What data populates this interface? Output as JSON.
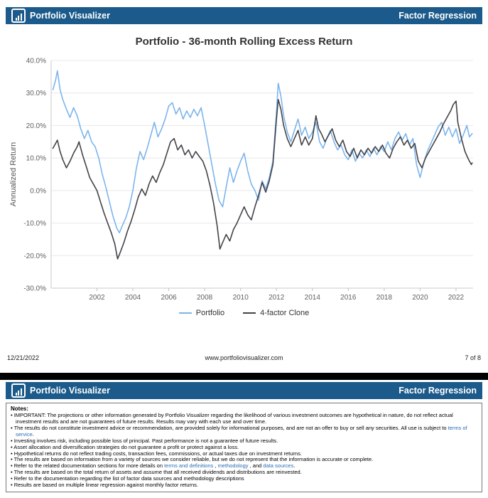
{
  "colors": {
    "header_bg": "#1b5a8a",
    "link": "#2a6db5",
    "portfolio_line": "#7cb5ec",
    "clone_line": "#434348"
  },
  "page1": {
    "header": {
      "brand": "Portfolio Visualizer",
      "section": "Factor Regression"
    },
    "chart_title": "Portfolio - 36-month Rolling Excess Return",
    "footer": {
      "date": "12/21/2022",
      "url": "www.portfoliovisualizer.com",
      "page": "7 of 8"
    }
  },
  "page2": {
    "header": {
      "brand": "Portfolio Visualizer",
      "section": "Factor Regression"
    },
    "notes_title": "Notes:",
    "bullet_char": "•",
    "notes": [
      [
        {
          "t": "IMPORTANT: The projections or other information generated by Portfolio Visualizer regarding the likelihood of various investment outcomes are hypothetical in nature, do not reflect actual investment results and are not guarantees of future results. Results may vary with each use and over time."
        }
      ],
      [
        {
          "t": "The results do not constitute investment advice or recommendation, are provided solely for informational purposes, and are not an offer to buy or sell any securities. All use is subject to "
        },
        {
          "t": "terms of service",
          "link": true
        },
        {
          "t": "."
        }
      ],
      [
        {
          "t": "Investing involves risk, including possible loss of principal. Past performance is not a guarantee of future results."
        }
      ],
      [
        {
          "t": "Asset allocation and diversification strategies do not guarantee a profit or protect against a loss."
        }
      ],
      [
        {
          "t": "Hypothetical returns do not reflect trading costs, transaction fees, commissions, or actual taxes due on investment returns."
        }
      ],
      [
        {
          "t": "The results are based on information from a variety of sources we consider reliable, but we do not represent that the information is accurate or complete."
        }
      ],
      [
        {
          "t": "Refer to the related documentation sections for more details on "
        },
        {
          "t": "terms and definitions",
          "link": true
        },
        {
          "t": " , "
        },
        {
          "t": "methodology",
          "link": true
        },
        {
          "t": " , and "
        },
        {
          "t": "data sources",
          "link": true
        },
        {
          "t": "."
        }
      ],
      [
        {
          "t": "The results are based on the total return of assets and assume that all received dividends and distributions are reinvested."
        }
      ],
      [
        {
          "t": "Refer to the documentation regarding the list of factor data sources and methodology descriptions"
        }
      ],
      [
        {
          "t": "Results are based on multiple linear regression against monthly factor returns."
        }
      ]
    ]
  },
  "chart_data": {
    "type": "line",
    "title": "Portfolio - 36-month Rolling Excess Return",
    "xlabel": "",
    "ylabel": "Annualized Return",
    "xlim": [
      1999.45,
      2022.95
    ],
    "ylim": [
      -30,
      40
    ],
    "grid": true,
    "legend_position": "bottom",
    "x_ticks": [
      2002,
      2004,
      2006,
      2008,
      2010,
      2012,
      2014,
      2016,
      2018,
      2020,
      2022
    ],
    "y_ticks": [
      40,
      30,
      20,
      10,
      0,
      -10,
      -20,
      -30
    ],
    "y_tick_labels": [
      "40.0%",
      "30.0%",
      "20.0%",
      "10.0%",
      "0.0%",
      "-10.0%",
      "-20.0%",
      "-30.0%"
    ],
    "series": [
      {
        "name": "Portfolio",
        "color": "#7cb5ec",
        "points": [
          [
            1999.55,
            31
          ],
          [
            1999.7,
            34
          ],
          [
            1999.8,
            36.8
          ],
          [
            1999.95,
            31
          ],
          [
            2000.1,
            28
          ],
          [
            2000.3,
            25
          ],
          [
            2000.5,
            22.5
          ],
          [
            2000.7,
            25.5
          ],
          [
            2000.9,
            23
          ],
          [
            2001.1,
            19
          ],
          [
            2001.3,
            16
          ],
          [
            2001.5,
            18.5
          ],
          [
            2001.7,
            15
          ],
          [
            2001.9,
            13.5
          ],
          [
            2002.1,
            10
          ],
          [
            2002.3,
            5
          ],
          [
            2002.5,
            1
          ],
          [
            2002.7,
            -3.5
          ],
          [
            2002.9,
            -8
          ],
          [
            2003.1,
            -11.5
          ],
          [
            2003.25,
            -13
          ],
          [
            2003.4,
            -11
          ],
          [
            2003.6,
            -8.5
          ],
          [
            2003.8,
            -5
          ],
          [
            2004.0,
            0
          ],
          [
            2004.2,
            7
          ],
          [
            2004.4,
            12
          ],
          [
            2004.6,
            9.5
          ],
          [
            2004.8,
            13
          ],
          [
            2005.0,
            17
          ],
          [
            2005.2,
            21
          ],
          [
            2005.4,
            16.5
          ],
          [
            2005.6,
            19
          ],
          [
            2005.8,
            22
          ],
          [
            2006.0,
            26
          ],
          [
            2006.2,
            27
          ],
          [
            2006.4,
            23.5
          ],
          [
            2006.6,
            25.5
          ],
          [
            2006.8,
            22
          ],
          [
            2007.0,
            24.5
          ],
          [
            2007.2,
            22.5
          ],
          [
            2007.4,
            25
          ],
          [
            2007.6,
            23
          ],
          [
            2007.8,
            25.5
          ],
          [
            2008.0,
            20
          ],
          [
            2008.2,
            14
          ],
          [
            2008.4,
            8
          ],
          [
            2008.6,
            2
          ],
          [
            2008.8,
            -3
          ],
          [
            2009.0,
            -5
          ],
          [
            2009.2,
            1
          ],
          [
            2009.4,
            7
          ],
          [
            2009.6,
            2.5
          ],
          [
            2009.8,
            6
          ],
          [
            2010.0,
            9
          ],
          [
            2010.2,
            11.5
          ],
          [
            2010.4,
            6
          ],
          [
            2010.6,
            2
          ],
          [
            2010.8,
            0
          ],
          [
            2011.0,
            -3
          ],
          [
            2011.2,
            3
          ],
          [
            2011.4,
            0.5
          ],
          [
            2011.6,
            4
          ],
          [
            2011.8,
            9
          ],
          [
            2012.0,
            24
          ],
          [
            2012.1,
            33
          ],
          [
            2012.25,
            29
          ],
          [
            2012.4,
            23
          ],
          [
            2012.6,
            18
          ],
          [
            2012.8,
            15
          ],
          [
            2013.0,
            18.5
          ],
          [
            2013.2,
            22
          ],
          [
            2013.4,
            17
          ],
          [
            2013.6,
            19.5
          ],
          [
            2013.8,
            16
          ],
          [
            2014.0,
            18
          ],
          [
            2014.2,
            21
          ],
          [
            2014.4,
            15
          ],
          [
            2014.6,
            13
          ],
          [
            2014.8,
            16
          ],
          [
            2015.0,
            18.5
          ],
          [
            2015.2,
            15
          ],
          [
            2015.4,
            12.5
          ],
          [
            2015.6,
            14
          ],
          [
            2015.8,
            11
          ],
          [
            2016.0,
            9.5
          ],
          [
            2016.2,
            12.5
          ],
          [
            2016.4,
            9
          ],
          [
            2016.6,
            11.5
          ],
          [
            2016.8,
            10
          ],
          [
            2017.0,
            12.5
          ],
          [
            2017.2,
            10.5
          ],
          [
            2017.4,
            13
          ],
          [
            2017.6,
            11
          ],
          [
            2017.8,
            13.5
          ],
          [
            2018.0,
            12
          ],
          [
            2018.2,
            15
          ],
          [
            2018.4,
            12.5
          ],
          [
            2018.6,
            16
          ],
          [
            2018.8,
            18
          ],
          [
            2019.0,
            15.5
          ],
          [
            2019.2,
            17.5
          ],
          [
            2019.4,
            14
          ],
          [
            2019.6,
            16
          ],
          [
            2019.8,
            8
          ],
          [
            2020.0,
            4
          ],
          [
            2020.2,
            8.5
          ],
          [
            2020.4,
            12
          ],
          [
            2020.6,
            14.5
          ],
          [
            2020.8,
            17
          ],
          [
            2021.0,
            19.5
          ],
          [
            2021.2,
            21
          ],
          [
            2021.4,
            17
          ],
          [
            2021.6,
            19.5
          ],
          [
            2021.8,
            16.5
          ],
          [
            2022.0,
            19
          ],
          [
            2022.2,
            14.5
          ],
          [
            2022.4,
            17
          ],
          [
            2022.6,
            20
          ],
          [
            2022.75,
            16.5
          ],
          [
            2022.9,
            17.5
          ]
        ]
      },
      {
        "name": "4-factor Clone",
        "color": "#434348",
        "points": [
          [
            1999.55,
            13
          ],
          [
            1999.7,
            14.5
          ],
          [
            1999.8,
            15.5
          ],
          [
            1999.95,
            12
          ],
          [
            2000.1,
            9.5
          ],
          [
            2000.3,
            7
          ],
          [
            2000.5,
            9
          ],
          [
            2000.7,
            11.5
          ],
          [
            2000.9,
            13.5
          ],
          [
            2001.0,
            15
          ],
          [
            2001.2,
            11
          ],
          [
            2001.4,
            7.5
          ],
          [
            2001.6,
            4
          ],
          [
            2001.8,
            2
          ],
          [
            2002.0,
            0
          ],
          [
            2002.2,
            -3.5
          ],
          [
            2002.4,
            -7
          ],
          [
            2002.6,
            -10
          ],
          [
            2002.8,
            -13
          ],
          [
            2003.0,
            -16.5
          ],
          [
            2003.15,
            -21
          ],
          [
            2003.3,
            -19
          ],
          [
            2003.5,
            -16
          ],
          [
            2003.7,
            -12.5
          ],
          [
            2003.9,
            -9.5
          ],
          [
            2004.1,
            -6
          ],
          [
            2004.3,
            -2
          ],
          [
            2004.5,
            0.5
          ],
          [
            2004.7,
            -1.5
          ],
          [
            2004.9,
            2
          ],
          [
            2005.1,
            4.5
          ],
          [
            2005.3,
            2.5
          ],
          [
            2005.5,
            5.5
          ],
          [
            2005.7,
            8
          ],
          [
            2005.9,
            11.5
          ],
          [
            2006.1,
            15
          ],
          [
            2006.3,
            16
          ],
          [
            2006.5,
            12.5
          ],
          [
            2006.7,
            14
          ],
          [
            2006.9,
            11
          ],
          [
            2007.1,
            12.5
          ],
          [
            2007.3,
            10
          ],
          [
            2007.5,
            12
          ],
          [
            2007.7,
            10.5
          ],
          [
            2007.9,
            9
          ],
          [
            2008.1,
            6
          ],
          [
            2008.3,
            1.5
          ],
          [
            2008.5,
            -4
          ],
          [
            2008.7,
            -11
          ],
          [
            2008.85,
            -18
          ],
          [
            2009.0,
            -16
          ],
          [
            2009.2,
            -13.5
          ],
          [
            2009.4,
            -15.5
          ],
          [
            2009.6,
            -12
          ],
          [
            2009.8,
            -10
          ],
          [
            2010.0,
            -7.5
          ],
          [
            2010.2,
            -5
          ],
          [
            2010.4,
            -7.5
          ],
          [
            2010.6,
            -9
          ],
          [
            2010.8,
            -5
          ],
          [
            2011.0,
            -1.5
          ],
          [
            2011.2,
            2.5
          ],
          [
            2011.4,
            -0.5
          ],
          [
            2011.6,
            3
          ],
          [
            2011.8,
            8
          ],
          [
            2012.0,
            22
          ],
          [
            2012.1,
            28
          ],
          [
            2012.25,
            25
          ],
          [
            2012.4,
            20
          ],
          [
            2012.6,
            16
          ],
          [
            2012.8,
            13.5
          ],
          [
            2013.0,
            16
          ],
          [
            2013.2,
            18.5
          ],
          [
            2013.4,
            14
          ],
          [
            2013.6,
            16.5
          ],
          [
            2013.8,
            14
          ],
          [
            2014.0,
            16
          ],
          [
            2014.2,
            23
          ],
          [
            2014.35,
            19
          ],
          [
            2014.5,
            17.5
          ],
          [
            2014.7,
            15
          ],
          [
            2014.9,
            17
          ],
          [
            2015.1,
            19
          ],
          [
            2015.3,
            15.5
          ],
          [
            2015.5,
            13.5
          ],
          [
            2015.7,
            15.5
          ],
          [
            2015.9,
            12
          ],
          [
            2016.1,
            10.5
          ],
          [
            2016.3,
            13
          ],
          [
            2016.5,
            10
          ],
          [
            2016.7,
            12.5
          ],
          [
            2016.9,
            11
          ],
          [
            2017.1,
            13
          ],
          [
            2017.3,
            11.5
          ],
          [
            2017.5,
            13.5
          ],
          [
            2017.7,
            12
          ],
          [
            2017.9,
            14
          ],
          [
            2018.1,
            11.5
          ],
          [
            2018.3,
            10
          ],
          [
            2018.5,
            13
          ],
          [
            2018.7,
            15
          ],
          [
            2018.9,
            16.5
          ],
          [
            2019.1,
            14
          ],
          [
            2019.3,
            15.5
          ],
          [
            2019.5,
            13
          ],
          [
            2019.7,
            14.5
          ],
          [
            2019.9,
            9
          ],
          [
            2020.1,
            7
          ],
          [
            2020.3,
            10
          ],
          [
            2020.5,
            12
          ],
          [
            2020.7,
            14
          ],
          [
            2020.9,
            16
          ],
          [
            2021.1,
            18
          ],
          [
            2021.3,
            20.5
          ],
          [
            2021.5,
            22.5
          ],
          [
            2021.7,
            24.5
          ],
          [
            2021.85,
            26.5
          ],
          [
            2022.0,
            27.5
          ],
          [
            2022.1,
            21
          ],
          [
            2022.3,
            16
          ],
          [
            2022.5,
            12
          ],
          [
            2022.7,
            9.5
          ],
          [
            2022.85,
            8
          ],
          [
            2022.9,
            8.5
          ]
        ]
      }
    ]
  }
}
